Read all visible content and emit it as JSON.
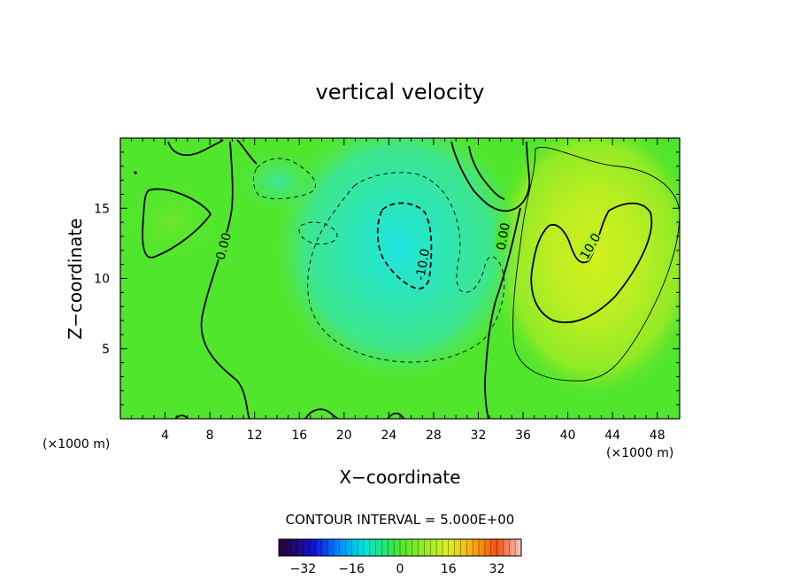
{
  "chart_data": {
    "type": "heatmap",
    "title": "vertical velocity",
    "xlabel": "X−coordinate",
    "ylabel": "Z−coordinate",
    "x_unit_left": "(×1000 m)",
    "x_unit_right": "(×1000 m)",
    "xlim": [
      0,
      50
    ],
    "ylim": [
      0,
      20
    ],
    "x_ticks": [
      4,
      8,
      12,
      16,
      20,
      24,
      28,
      32,
      36,
      40,
      44,
      48
    ],
    "y_ticks": [
      5,
      10,
      15
    ],
    "contour_interval_text": "CONTOUR INTERVAL = 5.000E+00",
    "contour_labels": [
      {
        "text": "0.00",
        "x": 9.2,
        "z": 12.3,
        "angle": -75
      },
      {
        "text": "-10.0",
        "x": 27.0,
        "z": 11.0,
        "angle": -80
      },
      {
        "text": "0.00",
        "x": 34.2,
        "z": 13.0,
        "angle": -80
      },
      {
        "text": "10.0",
        "x": 42.0,
        "z": 12.3,
        "angle": -60
      }
    ],
    "colorbar": {
      "range": [
        -40,
        40
      ],
      "tick_values": [
        -32,
        -16,
        0,
        16,
        32
      ],
      "tick_labels": [
        "−32",
        "−16",
        "0",
        "16",
        "32"
      ]
    },
    "features": [
      {
        "kind": "updraft_max",
        "x": 44.5,
        "z": 13,
        "value": 14
      },
      {
        "kind": "downdraft_min",
        "x": 25,
        "z": 12.5,
        "value": -16
      },
      {
        "kind": "downdraft_small",
        "x": 14,
        "z": 17,
        "value": -7
      },
      {
        "kind": "updraft_small",
        "x": 4,
        "z": 14,
        "value": 4
      }
    ]
  }
}
